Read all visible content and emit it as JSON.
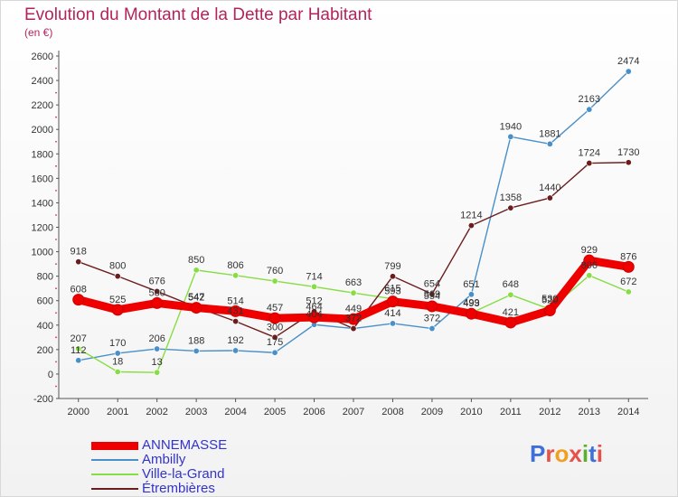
{
  "title": "Evolution du Montant de la Dette par Habitant",
  "subtitle": "(en €)",
  "logo": {
    "text": "Proxiti",
    "colors": [
      "#3f6fd9",
      "#e8504a",
      "#f0a020",
      "#e8504a",
      "#5bb030",
      "#3f6fd9",
      "#e8504a"
    ]
  },
  "chart_data": {
    "type": "line",
    "x": [
      2000,
      2001,
      2002,
      2003,
      2004,
      2005,
      2006,
      2007,
      2008,
      2009,
      2010,
      2011,
      2012,
      2013,
      2014
    ],
    "ylim": [
      -200,
      2600
    ],
    "yticks": [
      -200,
      0,
      200,
      400,
      600,
      800,
      1000,
      1200,
      1400,
      1600,
      1800,
      2000,
      2200,
      2400,
      2600
    ],
    "grid": false,
    "legend": "bottom-left",
    "series": [
      {
        "name": "ANNEMASSE",
        "color": "#ee0000",
        "values": [
          608,
          525,
          580,
          542,
          514,
          457,
          464,
          449,
          593,
          554,
          493,
          421,
          520,
          929,
          876
        ]
      },
      {
        "name": "Ambilly",
        "color": "#4a90c8",
        "values": [
          112,
          170,
          206,
          188,
          192,
          175,
          404,
          372,
          414,
          372,
          651,
          1940,
          1881,
          2163,
          2474
        ]
      },
      {
        "name": "Ville-la-Grand",
        "color": "#88dd44",
        "values": [
          207,
          18,
          13,
          850,
          806,
          760,
          714,
          663,
          615,
          569,
          499,
          648,
          530,
          806,
          672
        ]
      },
      {
        "name": "Étrembières",
        "color": "#6b1d1d",
        "values": [
          918,
          800,
          676,
          547,
          431,
          300,
          512,
          372,
          799,
          654,
          1214,
          1358,
          1440,
          1724,
          1730
        ]
      }
    ]
  }
}
